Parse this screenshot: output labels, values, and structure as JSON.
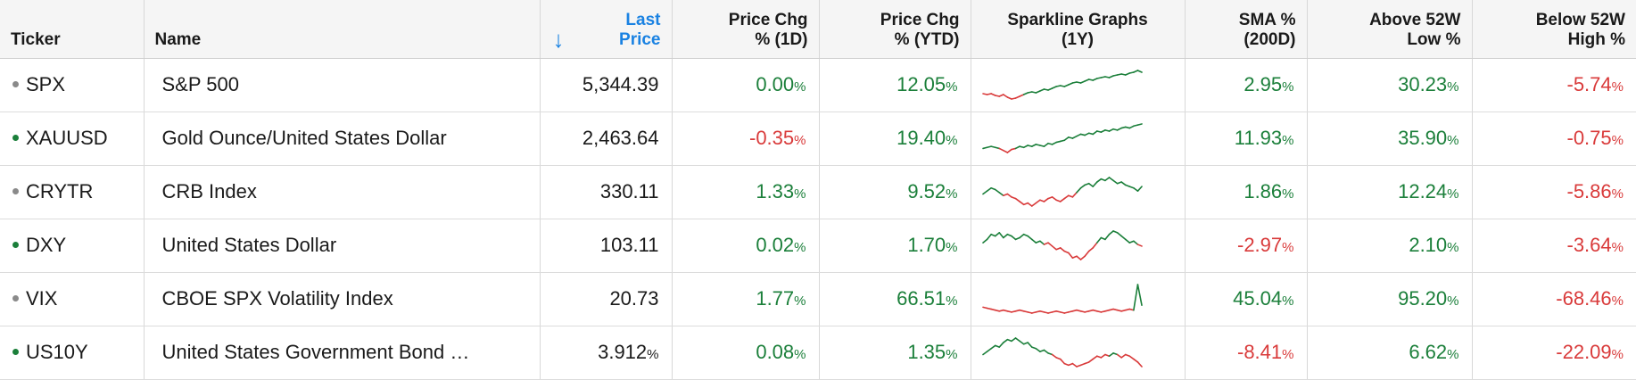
{
  "columns": {
    "ticker": "Ticker",
    "name": "Name",
    "last_price_1": "Last",
    "last_price_2": "Price",
    "chg1d_1": "Price Chg",
    "chg1d_2": "% (1D)",
    "chgytd_1": "Price Chg",
    "chgytd_2": "% (YTD)",
    "spark_1": "Sparkline Graphs",
    "spark_2": "(1Y)",
    "sma_1": "SMA %",
    "sma_2": "(200D)",
    "above_1": "Above 52W",
    "above_2": "Low %",
    "below_1": "Below 52W",
    "below_2": "High %"
  },
  "sort_icon": "arrow-down-icon",
  "colors": {
    "positive": "#1b7f3a",
    "negative": "#d93a3a",
    "accent": "#1a82e2",
    "dot_gray": "#8a8a8a",
    "dot_green": "#1b7f3a"
  },
  "rows": [
    {
      "ticker": "SPX",
      "dot": "gray",
      "name": "S&P 500",
      "last": "5,344.39",
      "last_pct": false,
      "chg1d": "0.00",
      "chg1d_sign": "pos",
      "chgytd": "12.05",
      "chgytd_sign": "pos",
      "sma": "2.95",
      "sma_sign": "pos",
      "above": "30.23",
      "above_sign": "pos",
      "below": "-5.74",
      "below_sign": "neg",
      "spark": [
        12,
        11,
        12,
        10,
        9,
        11,
        8,
        6,
        7,
        9,
        11,
        13,
        14,
        13,
        15,
        17,
        16,
        18,
        20,
        21,
        20,
        22,
        24,
        25,
        24,
        26,
        28,
        27,
        29,
        30,
        31,
        30,
        32,
        33,
        34,
        33,
        35,
        36,
        38,
        36
      ]
    },
    {
      "ticker": "XAUUSD",
      "dot": "green",
      "name": "Gold Ounce/United States Dollar",
      "last": "2,463.64",
      "last_pct": false,
      "chg1d": "-0.35",
      "chg1d_sign": "neg",
      "chgytd": "19.40",
      "chgytd_sign": "pos",
      "sma": "11.93",
      "sma_sign": "pos",
      "above": "35.90",
      "above_sign": "pos",
      "below": "-0.75",
      "below_sign": "neg",
      "spark": [
        10,
        11,
        12,
        11,
        10,
        8,
        6,
        9,
        10,
        12,
        11,
        13,
        12,
        14,
        13,
        12,
        15,
        14,
        16,
        17,
        18,
        21,
        20,
        22,
        24,
        23,
        25,
        24,
        27,
        26,
        28,
        27,
        29,
        28,
        30,
        31,
        30,
        32,
        33,
        34
      ]
    },
    {
      "ticker": "CRYTR",
      "dot": "gray",
      "name": "CRB Index",
      "last": "330.11",
      "last_pct": false,
      "chg1d": "1.33",
      "chg1d_sign": "pos",
      "chgytd": "9.52",
      "chgytd_sign": "pos",
      "sma": "1.86",
      "sma_sign": "pos",
      "above": "12.24",
      "above_sign": "pos",
      "below": "-5.86",
      "below_sign": "neg",
      "spark": [
        20,
        22,
        24,
        23,
        21,
        19,
        20,
        18,
        17,
        15,
        13,
        14,
        12,
        14,
        16,
        15,
        17,
        18,
        16,
        15,
        17,
        19,
        18,
        21,
        24,
        26,
        27,
        25,
        28,
        30,
        29,
        31,
        29,
        27,
        28,
        26,
        25,
        24,
        22,
        25
      ]
    },
    {
      "ticker": "DXY",
      "dot": "green",
      "name": "United States Dollar",
      "last": "103.11",
      "last_pct": false,
      "chg1d": "0.02",
      "chg1d_sign": "pos",
      "chgytd": "1.70",
      "chgytd_sign": "pos",
      "sma": "-2.97",
      "sma_sign": "neg",
      "above": "2.10",
      "above_sign": "pos",
      "below": "-3.64",
      "below_sign": "neg",
      "spark": [
        22,
        24,
        27,
        26,
        28,
        25,
        27,
        26,
        24,
        25,
        27,
        26,
        24,
        22,
        23,
        21,
        22,
        20,
        18,
        19,
        17,
        16,
        13,
        14,
        12,
        14,
        17,
        19,
        22,
        25,
        24,
        27,
        29,
        28,
        26,
        24,
        22,
        23,
        21,
        20
      ]
    },
    {
      "ticker": "VIX",
      "dot": "gray",
      "name": "CBOE SPX Volatility Index",
      "last": "20.73",
      "last_pct": false,
      "chg1d": "1.77",
      "chg1d_sign": "pos",
      "chgytd": "66.51",
      "chgytd_sign": "pos",
      "sma": "45.04",
      "sma_sign": "pos",
      "above": "95.20",
      "above_sign": "pos",
      "below": "-68.46",
      "below_sign": "neg",
      "spark": [
        12,
        11,
        10,
        9,
        8,
        9,
        8,
        7,
        8,
        9,
        8,
        7,
        6,
        7,
        8,
        7,
        6,
        7,
        8,
        7,
        6,
        7,
        8,
        9,
        8,
        7,
        8,
        9,
        8,
        7,
        8,
        9,
        10,
        9,
        8,
        9,
        10,
        9,
        35,
        14
      ]
    },
    {
      "ticker": "US10Y",
      "dot": "green",
      "name": "United States Government Bond …",
      "last": "3.912",
      "last_pct": true,
      "chg1d": "0.08",
      "chg1d_sign": "pos",
      "chgytd": "1.35",
      "chgytd_sign": "pos",
      "sma": "-8.41",
      "sma_sign": "neg",
      "above": "6.62",
      "above_sign": "pos",
      "below": "-22.09",
      "below_sign": "neg",
      "spark": [
        20,
        22,
        24,
        26,
        25,
        28,
        30,
        29,
        31,
        29,
        27,
        28,
        25,
        24,
        22,
        23,
        21,
        20,
        18,
        17,
        14,
        13,
        14,
        12,
        13,
        14,
        15,
        17,
        19,
        18,
        20,
        19,
        21,
        20,
        18,
        20,
        19,
        17,
        15,
        12
      ]
    }
  ]
}
